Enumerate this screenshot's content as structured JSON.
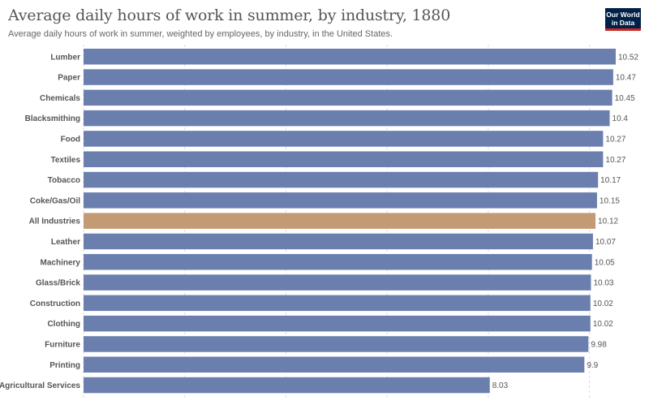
{
  "header": {
    "title": "Average daily hours of work in summer, by industry, 1880",
    "subtitle": "Average daily hours of work in summer, weighted by employees, by industry, in the United States."
  },
  "logo": {
    "line1": "Our World",
    "line2": "in Data"
  },
  "colors": {
    "bar": "#6b7faf",
    "highlight": "#c49a74",
    "grid": "#dddddd"
  },
  "chart_data": {
    "type": "bar",
    "orientation": "horizontal",
    "title": "Average daily hours of work in summer, by industry, 1880",
    "subtitle": "Average daily hours of work in summer, weighted by employees, by industry, in the United States.",
    "categories": [
      "Lumber",
      "Paper",
      "Chemicals",
      "Blacksmithing",
      "Food",
      "Textiles",
      "Tobacco",
      "Coke/Gas/Oil",
      "All Industries",
      "Leather",
      "Machinery",
      "Glass/Brick",
      "Construction",
      "Clothing",
      "Furniture",
      "Printing",
      "Agricultural Services"
    ],
    "values": [
      10.52,
      10.47,
      10.45,
      10.4,
      10.27,
      10.27,
      10.17,
      10.15,
      10.12,
      10.07,
      10.05,
      10.03,
      10.02,
      10.02,
      9.98,
      9.9,
      8.03
    ],
    "value_labels": [
      "10.52",
      "10.47",
      "10.45",
      "10.4",
      "10.27",
      "10.27",
      "10.17",
      "10.15",
      "10.12",
      "10.07",
      "10.05",
      "10.03",
      "10.02",
      "10.02",
      "9.98",
      "9.9",
      "8.03"
    ],
    "highlight": "All Industries",
    "xlim": [
      0,
      10.52
    ],
    "gridlines": [
      0,
      2,
      4,
      6,
      8,
      10
    ],
    "grid": true,
    "legend": "none"
  }
}
